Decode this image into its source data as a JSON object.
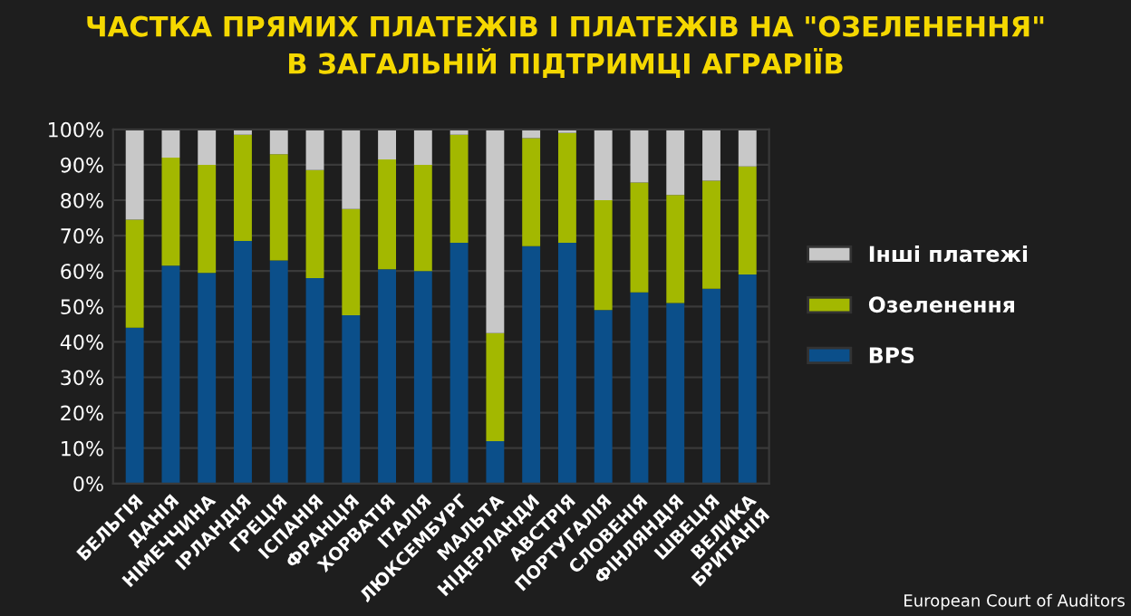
{
  "chart_data": {
    "type": "bar",
    "stacked": true,
    "title": "ЧАСТКА ПРЯМИХ ПЛАТЕЖІВ І ПЛАТЕЖІВ НА \"ОЗЕЛЕНЕННЯ\"\nВ ЗАГАЛЬНІЙ ПІДТРИМЦІ АГРАРІЇВ",
    "categories": [
      "БЕЛЬГІЯ",
      "ДАНІЯ",
      "НІМЕЧЧИНА",
      "ІРЛАНДІЯ",
      "ГРЕЦІЯ",
      "ІСПАНІЯ",
      "ФРАНЦІЯ",
      "ХОРВАТІЯ",
      "ІТАЛІЯ",
      "ЛЮКСЕМБУРГ",
      "МАЛЬТА",
      "НІДЕРЛАНДИ",
      "АВСТРІЯ",
      "ПОРТУГАЛІЯ",
      "СЛОВЕНІЯ",
      "ФІНЛЯНДІЯ",
      "ШВЕЦІЯ",
      "ВЕЛИКА\nБРИТАНІЯ"
    ],
    "series": [
      {
        "name": "BPS",
        "color": "#0b4f8a",
        "values": [
          44,
          61.5,
          59.5,
          68.5,
          63,
          58,
          47.5,
          60.5,
          60,
          68,
          12,
          67,
          68,
          49,
          54,
          51,
          55,
          59
        ]
      },
      {
        "name": "Озеленення",
        "color": "#a3b800",
        "values": [
          30.5,
          30.5,
          30.5,
          30,
          30,
          30.5,
          30,
          31,
          30,
          30.5,
          30.5,
          30.5,
          31,
          31,
          31,
          30.5,
          30.5,
          30.5
        ]
      },
      {
        "name": "Інші платежі",
        "color": "#c8c8c8",
        "values": [
          25.5,
          8,
          10,
          1.5,
          7,
          11.5,
          22.5,
          8.5,
          10,
          1.5,
          57.5,
          2.5,
          1,
          20,
          15,
          18.5,
          14.5,
          10.5
        ]
      }
    ],
    "ylim": [
      0,
      100
    ],
    "yticks": [
      {
        "value": 0,
        "label": "0%"
      },
      {
        "value": 10,
        "label": "10%"
      },
      {
        "value": 20,
        "label": "20%"
      },
      {
        "value": 30,
        "label": "30%"
      },
      {
        "value": 40,
        "label": "40%"
      },
      {
        "value": 50,
        "label": "50%"
      },
      {
        "value": 60,
        "label": "60%"
      },
      {
        "value": 70,
        "label": "70%"
      },
      {
        "value": 80,
        "label": "80%"
      },
      {
        "value": 90,
        "label": "90%"
      },
      {
        "value": 100,
        "label": "100%"
      }
    ],
    "grid": "y",
    "legend": "right",
    "annotations": [
      "European Court of Auditors"
    ]
  }
}
